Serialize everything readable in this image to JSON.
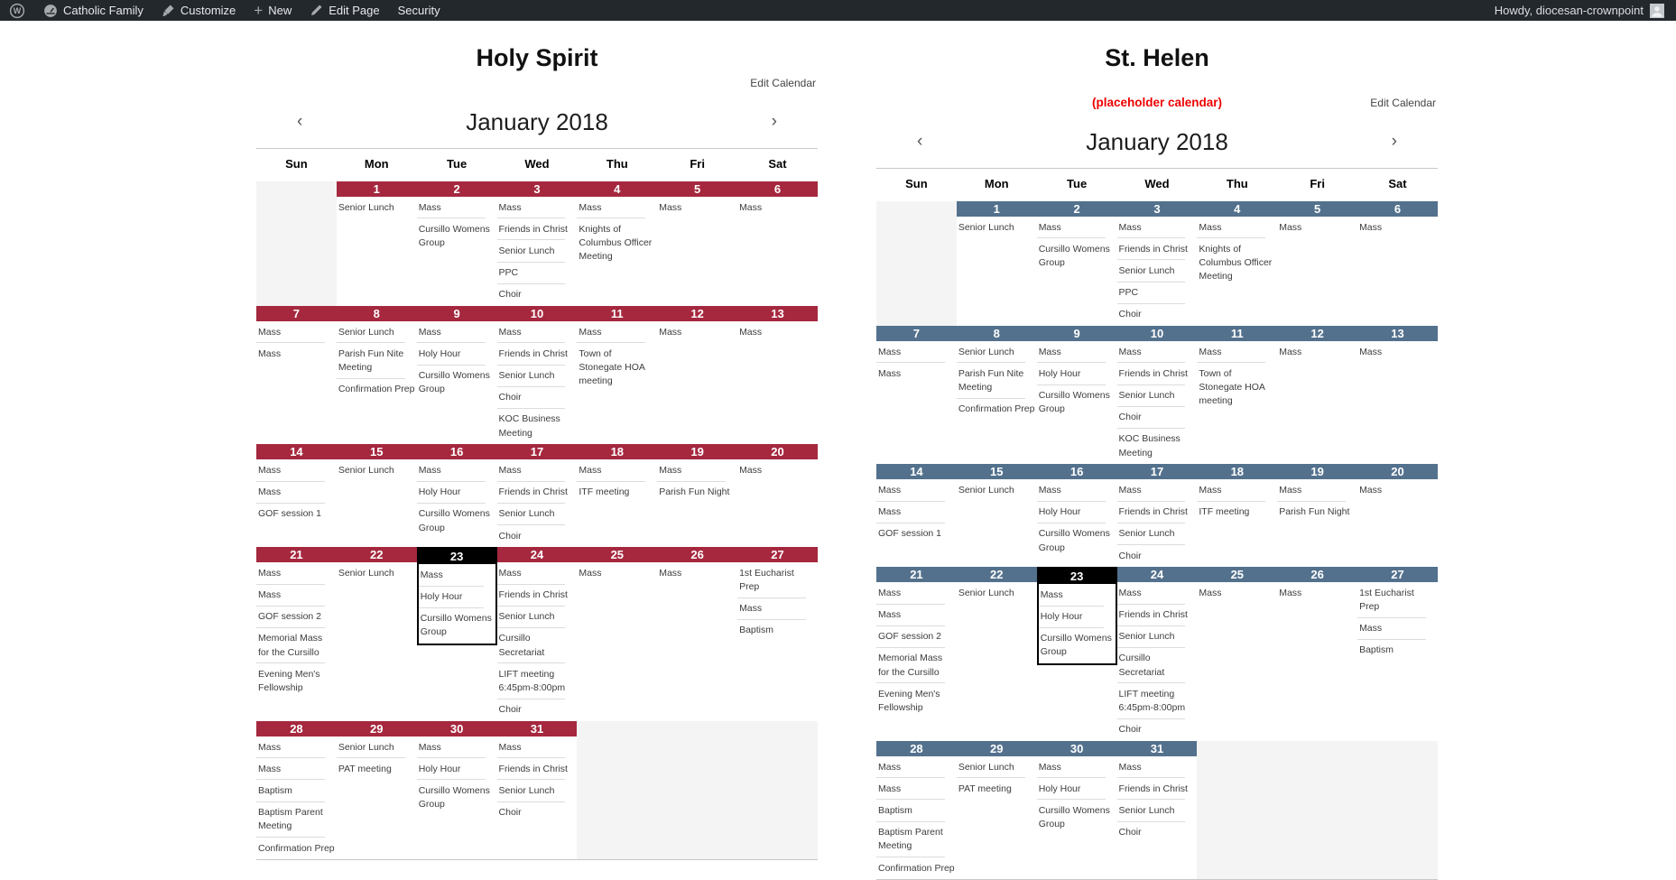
{
  "admin_bar": {
    "items": [
      {
        "icon": "wordpress-icon",
        "label": ""
      },
      {
        "icon": "dashboard-icon",
        "label": "Catholic Family"
      },
      {
        "icon": "customize-icon",
        "label": "Customize"
      },
      {
        "icon": "new-icon",
        "label": "New"
      },
      {
        "icon": "edit-icon",
        "label": "Edit Page"
      },
      {
        "icon": "",
        "label": "Security"
      }
    ],
    "howdy": "Howdy, diocesan-crownpoint",
    "bar_color": "#23282d",
    "icon_color": "#a7aaad"
  },
  "calendars": [
    {
      "title": "Holy Spirit",
      "subtitle": "",
      "subtitle_color": "",
      "edit_link": "Edit Calendar",
      "month": "January 2018",
      "prev": "‹",
      "next": "›",
      "accent": "#a5283e",
      "today_color": "#000000",
      "day_names": [
        "Sun",
        "Mon",
        "Tue",
        "Wed",
        "Thu",
        "Fri",
        "Sat"
      ],
      "weeks": [
        {
          "cells": [
            {
              "filler": true
            },
            {
              "day": "1",
              "events": [
                "Senior Lunch"
              ]
            },
            {
              "day": "2",
              "events": [
                "Mass",
                "Cursillo Womens Group"
              ]
            },
            {
              "day": "3",
              "events": [
                "Mass",
                "Friends in Christ",
                "Senior Lunch",
                "PPC",
                "Choir"
              ]
            },
            {
              "day": "4",
              "events": [
                "Mass",
                "Knights of Columbus Officer Meeting"
              ]
            },
            {
              "day": "5",
              "events": [
                "Mass"
              ]
            },
            {
              "day": "6",
              "events": [
                "Mass"
              ]
            }
          ]
        },
        {
          "cells": [
            {
              "day": "7",
              "events": [
                "Mass",
                "Mass"
              ]
            },
            {
              "day": "8",
              "events": [
                "Senior Lunch",
                "Parish Fun Nite Meeting",
                "Confirmation Prep"
              ]
            },
            {
              "day": "9",
              "events": [
                "Mass",
                "Holy Hour",
                "Cursillo Womens Group"
              ]
            },
            {
              "day": "10",
              "events": [
                "Mass",
                "Friends in Christ",
                "Senior Lunch",
                "Choir",
                "KOC Business Meeting"
              ]
            },
            {
              "day": "11",
              "events": [
                "Mass",
                "Town of Stonegate HOA meeting"
              ]
            },
            {
              "day": "12",
              "events": [
                "Mass"
              ]
            },
            {
              "day": "13",
              "events": [
                "Mass"
              ]
            }
          ]
        },
        {
          "cells": [
            {
              "day": "14",
              "events": [
                "Mass",
                "Mass",
                "GOF session 1"
              ]
            },
            {
              "day": "15",
              "events": [
                "Senior Lunch"
              ]
            },
            {
              "day": "16",
              "events": [
                "Mass",
                "Holy Hour",
                "Cursillo Womens Group"
              ]
            },
            {
              "day": "17",
              "events": [
                "Mass",
                "Friends in Christ",
                "Senior Lunch",
                "Choir"
              ]
            },
            {
              "day": "18",
              "events": [
                "Mass",
                "ITF meeting"
              ]
            },
            {
              "day": "19",
              "events": [
                "Mass",
                "Parish Fun Night"
              ]
            },
            {
              "day": "20",
              "events": [
                "Mass"
              ]
            }
          ]
        },
        {
          "cells": [
            {
              "day": "21",
              "events": [
                "Mass",
                "Mass",
                "GOF session 2",
                "Memorial Mass for the Cursillo",
                "Evening Men's Fellowship"
              ]
            },
            {
              "day": "22",
              "events": [
                "Senior Lunch"
              ]
            },
            {
              "day": "23",
              "today": true,
              "events": [
                "Mass",
                "Holy Hour",
                "Cursillo Womens Group"
              ]
            },
            {
              "day": "24",
              "events": [
                "Mass",
                "Friends in Christ",
                "Senior Lunch",
                "Cursillo Secretariat",
                "LIFT meeting 6:45pm-8:00pm",
                "Choir"
              ]
            },
            {
              "day": "25",
              "events": [
                "Mass"
              ]
            },
            {
              "day": "26",
              "events": [
                "Mass"
              ]
            },
            {
              "day": "27",
              "events": [
                "1st Eucharist Prep",
                "Mass",
                "Baptism"
              ]
            }
          ]
        },
        {
          "cells": [
            {
              "day": "28",
              "events": [
                "Mass",
                "Mass",
                "Baptism",
                "Baptism Parent Meeting",
                "Confirmation Prep"
              ]
            },
            {
              "day": "29",
              "events": [
                "Senior Lunch",
                "PAT meeting"
              ]
            },
            {
              "day": "30",
              "events": [
                "Mass",
                "Holy Hour",
                "Cursillo Womens Group"
              ]
            },
            {
              "day": "31",
              "events": [
                "Mass",
                "Friends in Christ",
                "Senior Lunch",
                "Choir"
              ]
            },
            {
              "filler": true
            },
            {
              "filler": true
            },
            {
              "filler": true
            }
          ]
        }
      ]
    },
    {
      "title": "St. Helen",
      "subtitle": "(placeholder calendar)",
      "subtitle_color": "#ee0000",
      "edit_link": "Edit Calendar",
      "month": "January 2018",
      "prev": "‹",
      "next": "›",
      "accent": "#53718d",
      "today_color": "#000000",
      "day_names": [
        "Sun",
        "Mon",
        "Tue",
        "Wed",
        "Thu",
        "Fri",
        "Sat"
      ],
      "weeks": [
        {
          "cells": [
            {
              "filler": true
            },
            {
              "day": "1",
              "events": [
                "Senior Lunch"
              ]
            },
            {
              "day": "2",
              "events": [
                "Mass",
                "Cursillo Womens Group"
              ]
            },
            {
              "day": "3",
              "events": [
                "Mass",
                "Friends in Christ",
                "Senior Lunch",
                "PPC",
                "Choir"
              ]
            },
            {
              "day": "4",
              "events": [
                "Mass",
                "Knights of Columbus Officer Meeting"
              ]
            },
            {
              "day": "5",
              "events": [
                "Mass"
              ]
            },
            {
              "day": "6",
              "events": [
                "Mass"
              ]
            }
          ]
        },
        {
          "cells": [
            {
              "day": "7",
              "events": [
                "Mass",
                "Mass"
              ]
            },
            {
              "day": "8",
              "events": [
                "Senior Lunch",
                "Parish Fun Nite Meeting",
                "Confirmation Prep"
              ]
            },
            {
              "day": "9",
              "events": [
                "Mass",
                "Holy Hour",
                "Cursillo Womens Group"
              ]
            },
            {
              "day": "10",
              "events": [
                "Mass",
                "Friends in Christ",
                "Senior Lunch",
                "Choir",
                "KOC Business Meeting"
              ]
            },
            {
              "day": "11",
              "events": [
                "Mass",
                "Town of Stonegate HOA meeting"
              ]
            },
            {
              "day": "12",
              "events": [
                "Mass"
              ]
            },
            {
              "day": "13",
              "events": [
                "Mass"
              ]
            }
          ]
        },
        {
          "cells": [
            {
              "day": "14",
              "events": [
                "Mass",
                "Mass",
                "GOF session 1"
              ]
            },
            {
              "day": "15",
              "events": [
                "Senior Lunch"
              ]
            },
            {
              "day": "16",
              "events": [
                "Mass",
                "Holy Hour",
                "Cursillo Womens Group"
              ]
            },
            {
              "day": "17",
              "events": [
                "Mass",
                "Friends in Christ",
                "Senior Lunch",
                "Choir"
              ]
            },
            {
              "day": "18",
              "events": [
                "Mass",
                "ITF meeting"
              ]
            },
            {
              "day": "19",
              "events": [
                "Mass",
                "Parish Fun Night"
              ]
            },
            {
              "day": "20",
              "events": [
                "Mass"
              ]
            }
          ]
        },
        {
          "cells": [
            {
              "day": "21",
              "events": [
                "Mass",
                "Mass",
                "GOF session 2",
                "Memorial Mass for the Cursillo",
                "Evening Men's Fellowship"
              ]
            },
            {
              "day": "22",
              "events": [
                "Senior Lunch"
              ]
            },
            {
              "day": "23",
              "today": true,
              "events": [
                "Mass",
                "Holy Hour",
                "Cursillo Womens Group"
              ]
            },
            {
              "day": "24",
              "events": [
                "Mass",
                "Friends in Christ",
                "Senior Lunch",
                "Cursillo Secretariat",
                "LIFT meeting 6:45pm-8:00pm",
                "Choir"
              ]
            },
            {
              "day": "25",
              "events": [
                "Mass"
              ]
            },
            {
              "day": "26",
              "events": [
                "Mass"
              ]
            },
            {
              "day": "27",
              "events": [
                "1st Eucharist Prep",
                "Mass",
                "Baptism"
              ]
            }
          ]
        },
        {
          "cells": [
            {
              "day": "28",
              "events": [
                "Mass",
                "Mass",
                "Baptism",
                "Baptism Parent Meeting",
                "Confirmation Prep"
              ]
            },
            {
              "day": "29",
              "events": [
                "Senior Lunch",
                "PAT meeting"
              ]
            },
            {
              "day": "30",
              "events": [
                "Mass",
                "Holy Hour",
                "Cursillo Womens Group"
              ]
            },
            {
              "day": "31",
              "events": [
                "Mass",
                "Friends in Christ",
                "Senior Lunch",
                "Choir"
              ]
            },
            {
              "filler": true
            },
            {
              "filler": true
            },
            {
              "filler": true
            }
          ]
        }
      ]
    }
  ]
}
